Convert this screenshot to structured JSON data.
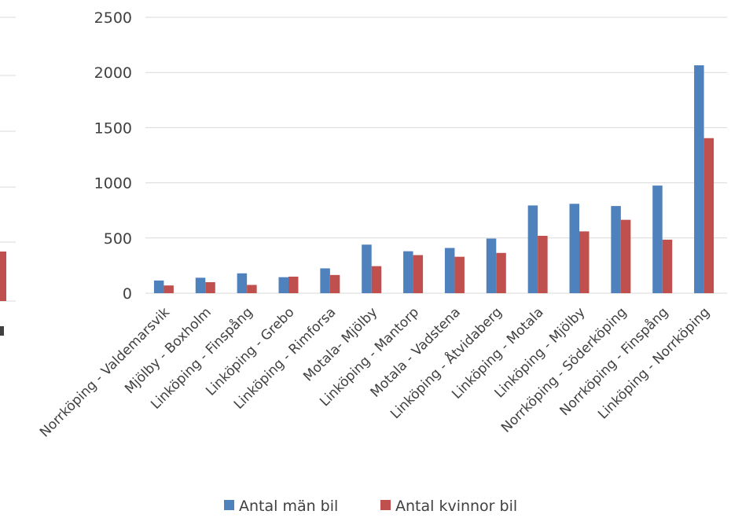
{
  "chart_data": {
    "type": "bar",
    "categories": [
      "Norrköping - Valdemarsvik",
      "Mjölby - Boxholm",
      "Linköping - Finspång",
      "Linköping - Grebo",
      "Linköping - Rimforsa",
      "Motala- Mjölby",
      "Linköping - Mantorp",
      "Motala - Vadstena",
      "Linköping - Åtvidaberg",
      "Linköping - Motala",
      "Linköping - Mjölby",
      "Norrköping - Söderköping",
      "Norrköping - Finspång",
      "Linköping - Norrköping"
    ],
    "series": [
      {
        "name": "Antal män bil",
        "color": "#4f81bd",
        "values": [
          115,
          140,
          180,
          145,
          225,
          440,
          380,
          410,
          495,
          795,
          810,
          790,
          975,
          2065
        ]
      },
      {
        "name": "Antal kvinnor bil",
        "color": "#c0504d",
        "values": [
          70,
          100,
          75,
          150,
          165,
          245,
          345,
          330,
          365,
          520,
          560,
          665,
          485,
          1405
        ]
      }
    ],
    "yticks": [
      "0",
      "500",
      "1000",
      "1500",
      "2000",
      "2500"
    ],
    "ylim": [
      0,
      2500
    ],
    "grid": true,
    "legend_position": "bottom",
    "partial_left_chart": {
      "visible_bar_value": 380,
      "bar_color": "#c0504d"
    }
  }
}
